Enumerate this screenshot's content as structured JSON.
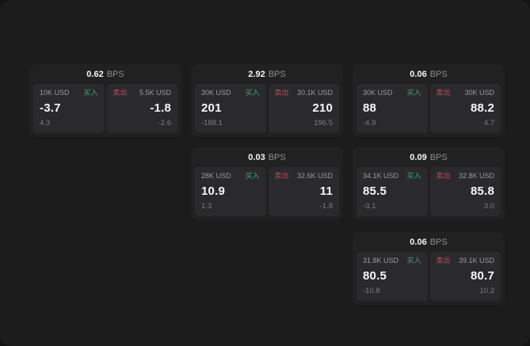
{
  "labels": {
    "unit": "BPS",
    "buy": "买入",
    "sell": "卖出"
  },
  "colors": {
    "buy_green": "#3fa573",
    "sell_red": "#bb4a5e",
    "window_bg": "#1c1c1d",
    "card_bg": "#212122",
    "panel_bg": "#2a2a2c"
  },
  "cards": [
    {
      "bps": "0.62",
      "buy": {
        "amount": "10K USD",
        "price": "-3.7",
        "delta": "4.3"
      },
      "sell": {
        "amount": "5.5K USD",
        "price": "-1.8",
        "delta": "-2.6"
      }
    },
    {
      "bps": "2.92",
      "buy": {
        "amount": "30K USD",
        "price": "201",
        "delta": "-188.1"
      },
      "sell": {
        "amount": "30.1K USD",
        "price": "210",
        "delta": "196.5"
      }
    },
    {
      "bps": "0.06",
      "buy": {
        "amount": "30K USD",
        "price": "88",
        "delta": "-4.9"
      },
      "sell": {
        "amount": "30K USD",
        "price": "88.2",
        "delta": "4.7"
      }
    },
    {
      "bps": "0.03",
      "buy": {
        "amount": "28K USD",
        "price": "10.9",
        "delta": "1.3"
      },
      "sell": {
        "amount": "32.6K USD",
        "price": "11",
        "delta": "-1.8"
      }
    },
    {
      "bps": "0.09",
      "buy": {
        "amount": "34.1K USD",
        "price": "85.5",
        "delta": "-3.1"
      },
      "sell": {
        "amount": "32.8K USD",
        "price": "85.8",
        "delta": "3.0"
      }
    },
    {
      "bps": "0.06",
      "buy": {
        "amount": "31.8K USD",
        "price": "80.5",
        "delta": "-10.8"
      },
      "sell": {
        "amount": "39.1K USD",
        "price": "80.7",
        "delta": "10.2"
      }
    }
  ]
}
